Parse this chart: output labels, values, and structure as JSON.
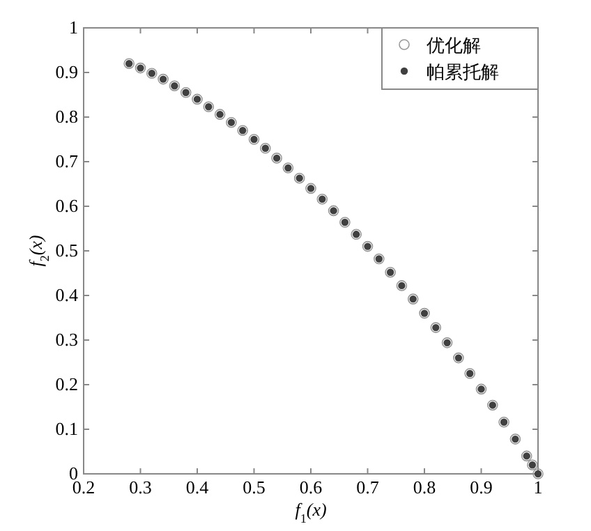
{
  "chart_data": {
    "type": "scatter",
    "xlabel": "f$_{1}$(x)",
    "ylabel": "f$_{2}$(x)",
    "xlim": [
      0.2,
      1
    ],
    "ylim": [
      0,
      1
    ],
    "xticks": [
      0.2,
      0.3,
      0.4,
      0.5,
      0.6,
      0.7,
      0.8,
      0.9,
      1
    ],
    "yticks": [
      0,
      0.1,
      0.2,
      0.3,
      0.4,
      0.5,
      0.6,
      0.7,
      0.8,
      0.9,
      1
    ],
    "grid": false,
    "legend": "top right",
    "marker": "circle",
    "x": [
      0.28,
      0.3,
      0.32,
      0.34,
      0.36,
      0.38,
      0.4,
      0.42,
      0.44,
      0.46,
      0.48,
      0.5,
      0.52,
      0.54,
      0.56,
      0.58,
      0.6,
      0.62,
      0.64,
      0.66,
      0.68,
      0.7,
      0.72,
      0.74,
      0.76,
      0.78,
      0.8,
      0.82,
      0.84,
      0.86,
      0.88,
      0.9,
      0.92,
      0.94,
      0.96,
      0.98,
      0.99,
      1
    ],
    "series": [
      {
        "name": "优化解",
        "color": "#999999",
        "values": [
          0.92,
          0.91,
          0.898,
          0.885,
          0.87,
          0.855,
          0.84,
          0.823,
          0.806,
          0.788,
          0.77,
          0.75,
          0.73,
          0.708,
          0.686,
          0.663,
          0.64,
          0.616,
          0.59,
          0.564,
          0.537,
          0.51,
          0.482,
          0.452,
          0.422,
          0.392,
          0.36,
          0.328,
          0.294,
          0.26,
          0.225,
          0.19,
          0.154,
          0.116,
          0.078,
          0.04,
          0.02,
          0
        ]
      },
      {
        "name": "帕累托解",
        "color": "#404040",
        "values": [
          0.92,
          0.91,
          0.898,
          0.885,
          0.87,
          0.855,
          0.84,
          0.823,
          0.806,
          0.788,
          0.77,
          0.75,
          0.73,
          0.708,
          0.686,
          0.663,
          0.64,
          0.616,
          0.59,
          0.564,
          0.537,
          0.51,
          0.482,
          0.452,
          0.422,
          0.392,
          0.36,
          0.328,
          0.294,
          0.26,
          0.225,
          0.19,
          0.154,
          0.116,
          0.078,
          0.04,
          0.02,
          0
        ]
      }
    ]
  }
}
